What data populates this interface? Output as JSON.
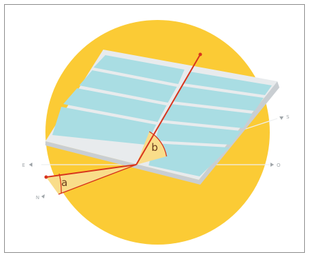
{
  "diagram": {
    "angle_a_label": "a",
    "angle_b_label": "b",
    "direction_labels": {
      "left": "E",
      "bottom_left": "N",
      "right": "O",
      "top_right": "S"
    }
  },
  "colors": {
    "sun_disc": "#fbcb35",
    "panel_frame": "#e8ebed",
    "panel_cells": "#a9dde3",
    "panel_side": "#c9ced2",
    "ray": "#d8341c",
    "angle_fill": "#f9dd8a",
    "guide_line": "#eef0f1"
  },
  "icons": [
    "sun-disc-shape",
    "solar-panel-shape"
  ]
}
